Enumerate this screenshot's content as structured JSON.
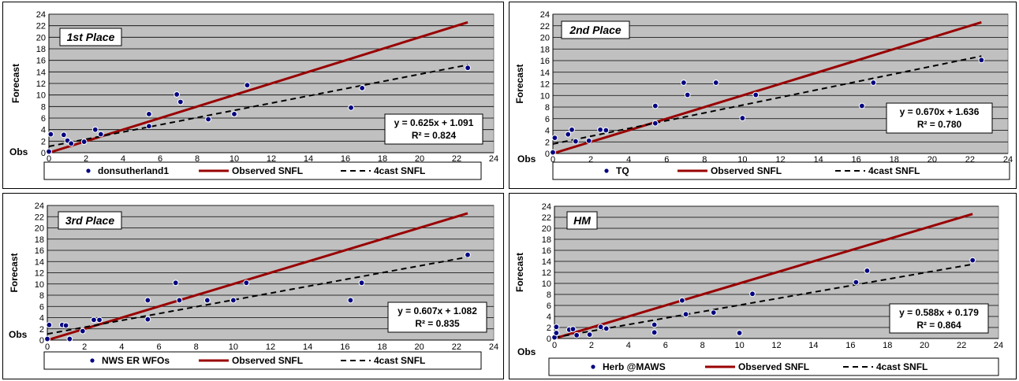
{
  "chart_data": [
    {
      "type": "scatter",
      "place_label": "1st Place",
      "xlabel": "Obs",
      "ylabel": "Forecast",
      "xlim": [
        0,
        24
      ],
      "ylim": [
        0,
        24
      ],
      "xticks": [
        0,
        2,
        4,
        6,
        8,
        10,
        12,
        14,
        16,
        18,
        20,
        22,
        24
      ],
      "yticks": [
        0,
        2,
        4,
        6,
        8,
        10,
        12,
        14,
        16,
        18,
        20,
        22,
        24
      ],
      "grid": true,
      "legend_position": "bottom",
      "series": [
        {
          "name": "donsutherland1",
          "kind": "points",
          "color": "#000080",
          "points": [
            [
              0,
              0.2
            ],
            [
              0.1,
              3.2
            ],
            [
              0.8,
              3.1
            ],
            [
              1,
              2.1
            ],
            [
              1.2,
              1.6
            ],
            [
              1.9,
              1.9
            ],
            [
              2.5,
              4
            ],
            [
              2.8,
              3.2
            ],
            [
              5.4,
              6.7
            ],
            [
              5.4,
              4.6
            ],
            [
              6.9,
              10.1
            ],
            [
              7.1,
              8.8
            ],
            [
              8.6,
              5.8
            ],
            [
              10,
              6.7
            ],
            [
              10.7,
              11.7
            ],
            [
              16.3,
              7.8
            ],
            [
              16.9,
              11.2
            ],
            [
              22.6,
              14.7
            ]
          ]
        },
        {
          "name": "Observed SNFL",
          "kind": "line",
          "color": "#990000",
          "from": [
            0,
            0
          ],
          "to": [
            22.6,
            22.6
          ]
        },
        {
          "name": "4cast SNFL",
          "kind": "trend",
          "color": "#000000",
          "slope": 0.625,
          "intercept": 1.091,
          "x_range": [
            0,
            22.6
          ]
        }
      ],
      "equation": "y = 0.625x + 1.091",
      "r2_text": "R² = 0.824"
    },
    {
      "type": "scatter",
      "place_label": "2nd Place",
      "xlabel": "Obs",
      "ylabel": "Forecast",
      "xlim": [
        0,
        24
      ],
      "ylim": [
        0,
        24
      ],
      "xticks": [
        0,
        2,
        4,
        6,
        8,
        10,
        12,
        14,
        16,
        18,
        20,
        22,
        24
      ],
      "yticks": [
        0,
        2,
        4,
        6,
        8,
        10,
        12,
        14,
        16,
        18,
        20,
        22,
        24
      ],
      "grid": true,
      "legend_position": "bottom",
      "series": [
        {
          "name": "TQ",
          "kind": "points",
          "color": "#000080",
          "points": [
            [
              0,
              0.2
            ],
            [
              0.1,
              2.7
            ],
            [
              0.8,
              3.3
            ],
            [
              1,
              4.1
            ],
            [
              1.2,
              2.1
            ],
            [
              1.9,
              2.2
            ],
            [
              2.5,
              4.1
            ],
            [
              2.8,
              4
            ],
            [
              5.4,
              8.2
            ],
            [
              5.4,
              5.2
            ],
            [
              6.9,
              12.2
            ],
            [
              7.1,
              10.1
            ],
            [
              8.6,
              12.2
            ],
            [
              10,
              6.1
            ],
            [
              10.7,
              10.1
            ],
            [
              16.3,
              8.2
            ],
            [
              16.9,
              12.2
            ],
            [
              22.6,
              16.1
            ]
          ]
        },
        {
          "name": "Observed SNFL",
          "kind": "line",
          "color": "#990000",
          "from": [
            0,
            0
          ],
          "to": [
            22.6,
            22.6
          ]
        },
        {
          "name": "4cast SNFL",
          "kind": "trend",
          "color": "#000000",
          "slope": 0.67,
          "intercept": 1.636,
          "x_range": [
            0,
            22.6
          ]
        }
      ],
      "equation": "y = 0.670x + 1.636",
      "r2_text": "R² = 0.780"
    },
    {
      "type": "scatter",
      "place_label": "3rd Place",
      "xlabel": "Obs",
      "ylabel": "Forecast",
      "xlim": [
        0,
        24
      ],
      "ylim": [
        0,
        24
      ],
      "xticks": [
        0,
        2,
        4,
        6,
        8,
        10,
        12,
        14,
        16,
        18,
        20,
        22,
        24
      ],
      "yticks": [
        0,
        2,
        4,
        6,
        8,
        10,
        12,
        14,
        16,
        18,
        20,
        22,
        24
      ],
      "grid": true,
      "legend_position": "bottom",
      "series": [
        {
          "name": "NWS ER WFOs",
          "kind": "points",
          "color": "#000080",
          "points": [
            [
              0,
              0.2
            ],
            [
              0.1,
              2.7
            ],
            [
              0.8,
              2.7
            ],
            [
              1,
              2.6
            ],
            [
              1.2,
              0.2
            ],
            [
              1.9,
              1.6
            ],
            [
              2.5,
              3.6
            ],
            [
              2.8,
              3.6
            ],
            [
              5.4,
              7.1
            ],
            [
              5.4,
              3.7
            ],
            [
              6.9,
              10.2
            ],
            [
              7.1,
              7.1
            ],
            [
              8.6,
              7.1
            ],
            [
              10,
              7.1
            ],
            [
              10.7,
              10.2
            ],
            [
              16.3,
              7.1
            ],
            [
              16.9,
              10.2
            ],
            [
              22.6,
              15.2
            ]
          ]
        },
        {
          "name": "Observed SNFL",
          "kind": "line",
          "color": "#990000",
          "from": [
            0,
            0
          ],
          "to": [
            22.6,
            22.6
          ]
        },
        {
          "name": "4cast SNFL",
          "kind": "trend",
          "color": "#000000",
          "slope": 0.607,
          "intercept": 1.082,
          "x_range": [
            0,
            22.6
          ]
        }
      ],
      "equation": "y = 0.607x + 1.082",
      "r2_text": "R² = 0.835"
    },
    {
      "type": "scatter",
      "place_label": "HM",
      "xlabel": "Obs",
      "ylabel": "Forecast",
      "xlim": [
        0,
        24
      ],
      "ylim": [
        0,
        24
      ],
      "xticks": [
        0,
        2,
        4,
        6,
        8,
        10,
        12,
        14,
        16,
        18,
        20,
        22,
        24
      ],
      "yticks": [
        0,
        2,
        4,
        6,
        8,
        10,
        12,
        14,
        16,
        18,
        20,
        22,
        24
      ],
      "grid": true,
      "legend_position": "bottom",
      "series": [
        {
          "name": "Herb @MAWS",
          "kind": "points",
          "color": "#000080",
          "points": [
            [
              0,
              0.2
            ],
            [
              0.1,
              2.1
            ],
            [
              0.1,
              1
            ],
            [
              0.8,
              1.6
            ],
            [
              1,
              1.7
            ],
            [
              1.2,
              0.6
            ],
            [
              1.9,
              0.7
            ],
            [
              2.5,
              2.1
            ],
            [
              2.8,
              1.8
            ],
            [
              5.4,
              2.5
            ],
            [
              5.4,
              1.1
            ],
            [
              6.9,
              6.9
            ],
            [
              7.1,
              4.4
            ],
            [
              8.6,
              4.7
            ],
            [
              10,
              1
            ],
            [
              10.7,
              8.1
            ],
            [
              16.3,
              10.2
            ],
            [
              16.9,
              12.3
            ],
            [
              22.6,
              14.2
            ]
          ]
        },
        {
          "name": "Observed SNFL",
          "kind": "line",
          "color": "#990000",
          "from": [
            0,
            0
          ],
          "to": [
            22.6,
            22.6
          ]
        },
        {
          "name": "4cast SNFL",
          "kind": "trend",
          "color": "#000000",
          "slope": 0.588,
          "intercept": 0.179,
          "x_range": [
            0,
            22.6
          ]
        }
      ],
      "equation": "y = 0.588x + 0.179",
      "r2_text": "R² = 0.864"
    }
  ],
  "colors": {
    "plot_background": "#c0c0c0",
    "gridline": "#000000",
    "point": "#000080",
    "observed_line": "#990000",
    "trend_line": "#000000"
  }
}
